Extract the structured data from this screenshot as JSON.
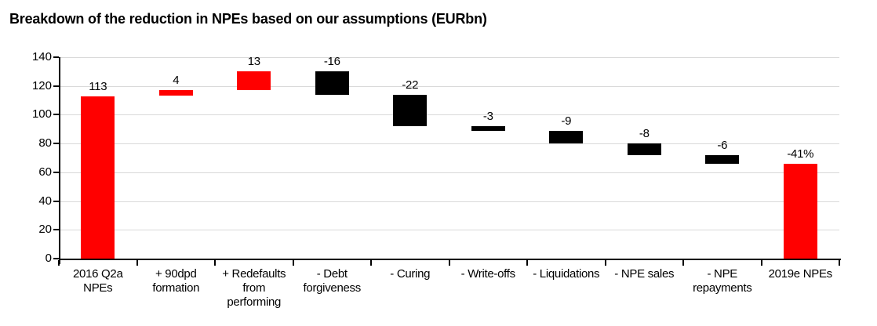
{
  "title": "Breakdown of the reduction in NPEs based on our assumptions (EURbn)",
  "colors": {
    "increase_bar": "#ff0000",
    "decrease_bar": "#000000",
    "total_bar": "#ff0000",
    "gridline": "#d9d9d9",
    "axis": "#000000",
    "text": "#000000"
  },
  "chart_data": {
    "type": "bar",
    "subtype": "waterfall",
    "title": "Breakdown of the reduction in NPEs based on our assumptions (EURbn)",
    "xlabel": "",
    "ylabel": "",
    "ylim": [
      0,
      140
    ],
    "yticks": [
      0,
      20,
      40,
      60,
      80,
      100,
      120,
      140
    ],
    "grid": true,
    "legend": "none",
    "bars": [
      {
        "category": "2016 Q2a\nNPEs",
        "label": "113",
        "value": 113,
        "type": "total",
        "color": "#ff0000"
      },
      {
        "category": "+ 90dpd\nformation",
        "label": "4",
        "value": 4,
        "type": "delta",
        "color": "#ff0000"
      },
      {
        "category": "+ Redefaults\nfrom\nperforming",
        "label": "13",
        "value": 13,
        "type": "delta",
        "color": "#ff0000"
      },
      {
        "category": "- Debt\nforgiveness",
        "label": "-16",
        "value": -16,
        "type": "delta",
        "color": "#000000"
      },
      {
        "category": "- Curing",
        "label": "-22",
        "value": -22,
        "type": "delta",
        "color": "#000000"
      },
      {
        "category": "- Write-offs",
        "label": "-3",
        "value": -3,
        "type": "delta",
        "color": "#000000"
      },
      {
        "category": "- Liquidations",
        "label": "-9",
        "value": -9,
        "type": "delta",
        "color": "#000000"
      },
      {
        "category": "- NPE sales",
        "label": "-8",
        "value": -8,
        "type": "delta",
        "color": "#000000"
      },
      {
        "category": "- NPE\nrepayments",
        "label": "-6",
        "value": -6,
        "type": "delta",
        "color": "#000000"
      },
      {
        "category": "2019e NPEs",
        "label": "-41%",
        "value": 66,
        "type": "total",
        "color": "#ff0000"
      }
    ]
  }
}
